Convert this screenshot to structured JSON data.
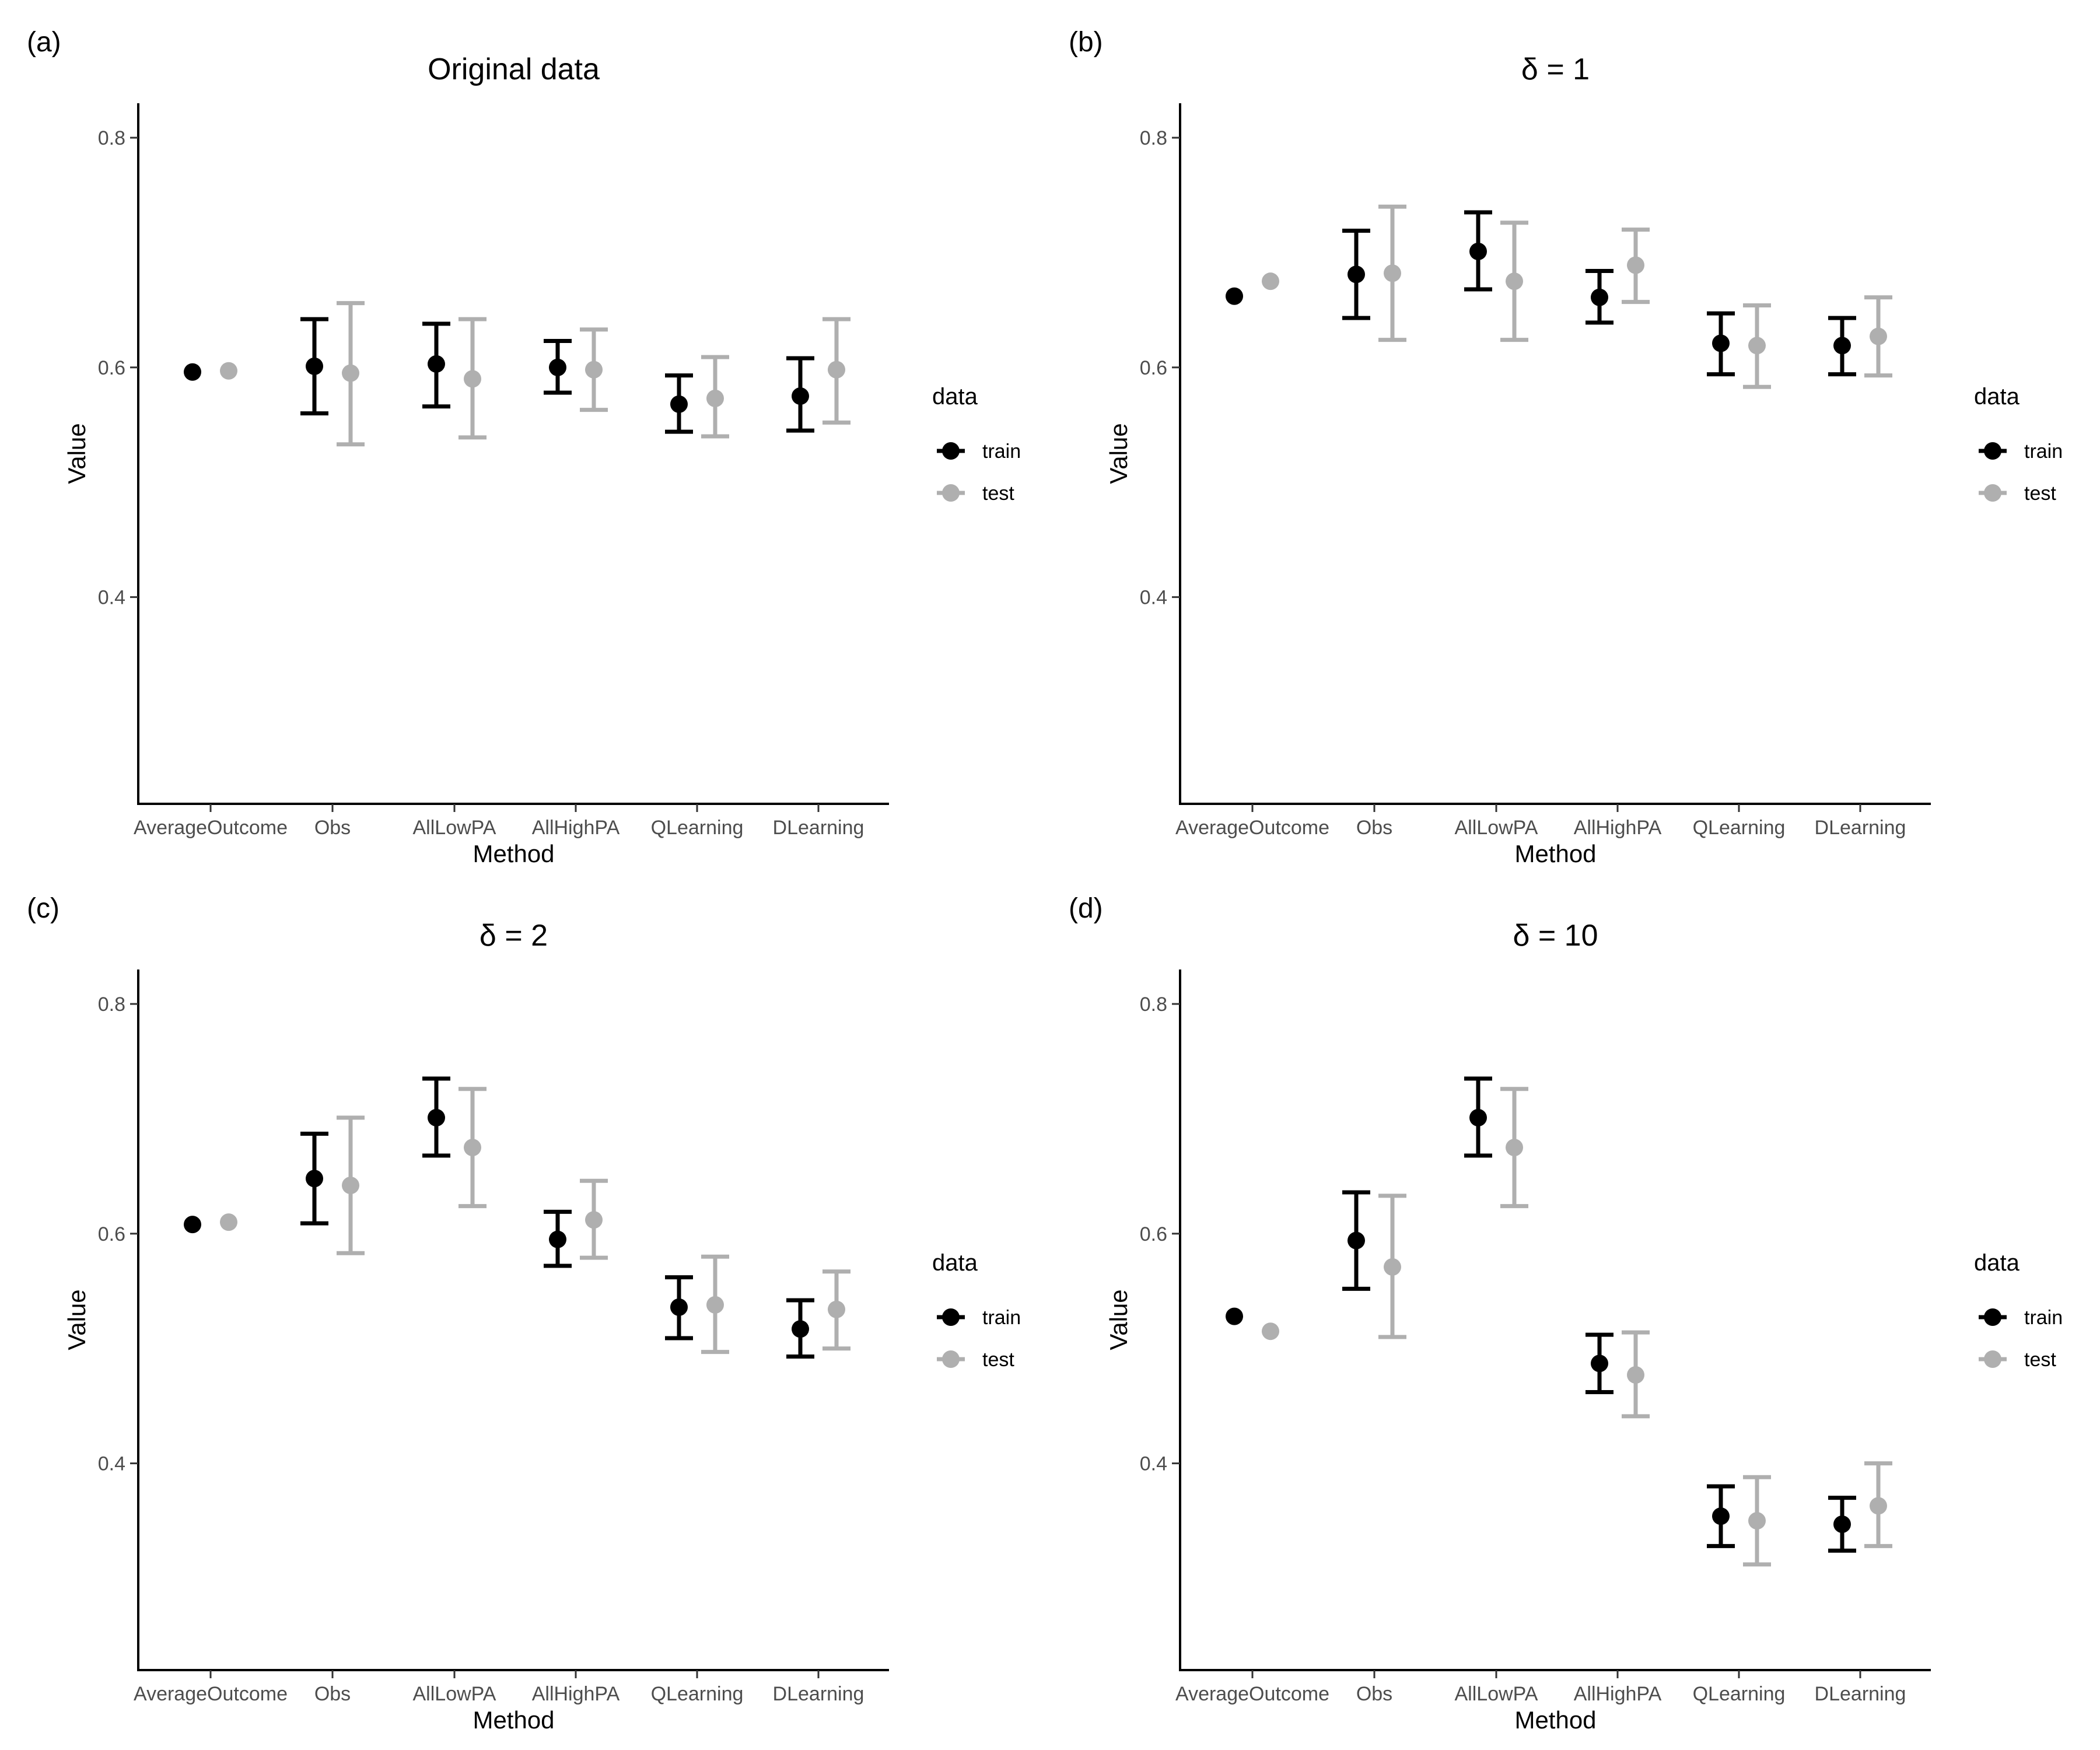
{
  "figure": {
    "legend": {
      "title": "data",
      "entries": [
        {
          "label": "train",
          "color": "#000000"
        },
        {
          "label": "test",
          "color": "#AFAFAF"
        }
      ]
    },
    "colors": {
      "train": "#000000",
      "test": "#AFAFAF",
      "axis": "#000000",
      "tick_text": "#4D4D4D"
    }
  },
  "chart_data": [
    {
      "panel_label": "(a)",
      "type": "scatter",
      "title": "Original data",
      "xlabel": "Method",
      "ylabel": "Value",
      "ylim": [
        0.22,
        0.83
      ],
      "yticks": [
        0.4,
        0.6,
        0.8
      ],
      "ytick_labels": [
        "0.4",
        "0.6",
        "0.8"
      ],
      "categories": [
        "AverageOutcome",
        "Obs",
        "AllLowPA",
        "AllHighPA",
        "QLearning",
        "DLearning"
      ],
      "grid": false,
      "legend_position": "right",
      "series": [
        {
          "name": "train",
          "values": [
            0.596,
            0.601,
            0.603,
            0.6,
            0.568,
            0.575
          ],
          "lower": [
            null,
            0.56,
            0.566,
            0.578,
            0.544,
            0.545
          ],
          "upper": [
            null,
            0.642,
            0.638,
            0.623,
            0.593,
            0.608
          ]
        },
        {
          "name": "test",
          "values": [
            0.597,
            0.595,
            0.59,
            0.598,
            0.573,
            0.598
          ],
          "lower": [
            null,
            0.533,
            0.539,
            0.563,
            0.54,
            0.552
          ],
          "upper": [
            null,
            0.656,
            0.642,
            0.633,
            0.609,
            0.642
          ]
        }
      ]
    },
    {
      "panel_label": "(b)",
      "type": "scatter",
      "title": "δ = 1",
      "xlabel": "Method",
      "ylabel": "Value",
      "ylim": [
        0.22,
        0.83
      ],
      "yticks": [
        0.4,
        0.6,
        0.8
      ],
      "ytick_labels": [
        "0.4",
        "0.6",
        "0.8"
      ],
      "categories": [
        "AverageOutcome",
        "Obs",
        "AllLowPA",
        "AllHighPA",
        "QLearning",
        "DLearning"
      ],
      "grid": false,
      "legend_position": "right",
      "series": [
        {
          "name": "train",
          "values": [
            0.662,
            0.681,
            0.701,
            0.661,
            0.621,
            0.619
          ],
          "lower": [
            null,
            0.643,
            0.668,
            0.639,
            0.594,
            0.594
          ],
          "upper": [
            null,
            0.719,
            0.735,
            0.684,
            0.647,
            0.643
          ]
        },
        {
          "name": "test",
          "values": [
            0.675,
            0.682,
            0.675,
            0.689,
            0.619,
            0.627
          ],
          "lower": [
            null,
            0.624,
            0.624,
            0.657,
            0.583,
            0.593
          ],
          "upper": [
            null,
            0.74,
            0.726,
            0.72,
            0.654,
            0.661
          ]
        }
      ]
    },
    {
      "panel_label": "(c)",
      "type": "scatter",
      "title": "δ = 2",
      "xlabel": "Method",
      "ylabel": "Value",
      "ylim": [
        0.22,
        0.83
      ],
      "yticks": [
        0.4,
        0.6,
        0.8
      ],
      "ytick_labels": [
        "0.4",
        "0.6",
        "0.8"
      ],
      "categories": [
        "AverageOutcome",
        "Obs",
        "AllLowPA",
        "AllHighPA",
        "QLearning",
        "DLearning"
      ],
      "grid": false,
      "legend_position": "right",
      "series": [
        {
          "name": "train",
          "values": [
            0.608,
            0.648,
            0.701,
            0.595,
            0.536,
            0.517
          ],
          "lower": [
            null,
            0.609,
            0.668,
            0.572,
            0.509,
            0.493
          ],
          "upper": [
            null,
            0.687,
            0.735,
            0.619,
            0.562,
            0.542
          ]
        },
        {
          "name": "test",
          "values": [
            0.61,
            0.642,
            0.675,
            0.612,
            0.538,
            0.534
          ],
          "lower": [
            null,
            0.583,
            0.624,
            0.579,
            0.497,
            0.5
          ],
          "upper": [
            null,
            0.701,
            0.726,
            0.646,
            0.58,
            0.567
          ]
        }
      ]
    },
    {
      "panel_label": "(d)",
      "type": "scatter",
      "title": "δ = 10",
      "xlabel": "Method",
      "ylabel": "Value",
      "ylim": [
        0.22,
        0.83
      ],
      "yticks": [
        0.4,
        0.6,
        0.8
      ],
      "ytick_labels": [
        "0.4",
        "0.6",
        "0.8"
      ],
      "categories": [
        "AverageOutcome",
        "Obs",
        "AllLowPA",
        "AllHighPA",
        "QLearning",
        "DLearning"
      ],
      "grid": false,
      "legend_position": "right",
      "series": [
        {
          "name": "train",
          "values": [
            0.528,
            0.594,
            0.701,
            0.487,
            0.354,
            0.347
          ],
          "lower": [
            null,
            0.552,
            0.668,
            0.462,
            0.328,
            0.324
          ],
          "upper": [
            null,
            0.636,
            0.735,
            0.512,
            0.38,
            0.37
          ]
        },
        {
          "name": "test",
          "values": [
            0.515,
            0.571,
            0.675,
            0.477,
            0.35,
            0.363
          ],
          "lower": [
            null,
            0.51,
            0.624,
            0.441,
            0.312,
            0.328
          ],
          "upper": [
            null,
            0.633,
            0.726,
            0.514,
            0.388,
            0.4
          ]
        }
      ]
    }
  ]
}
